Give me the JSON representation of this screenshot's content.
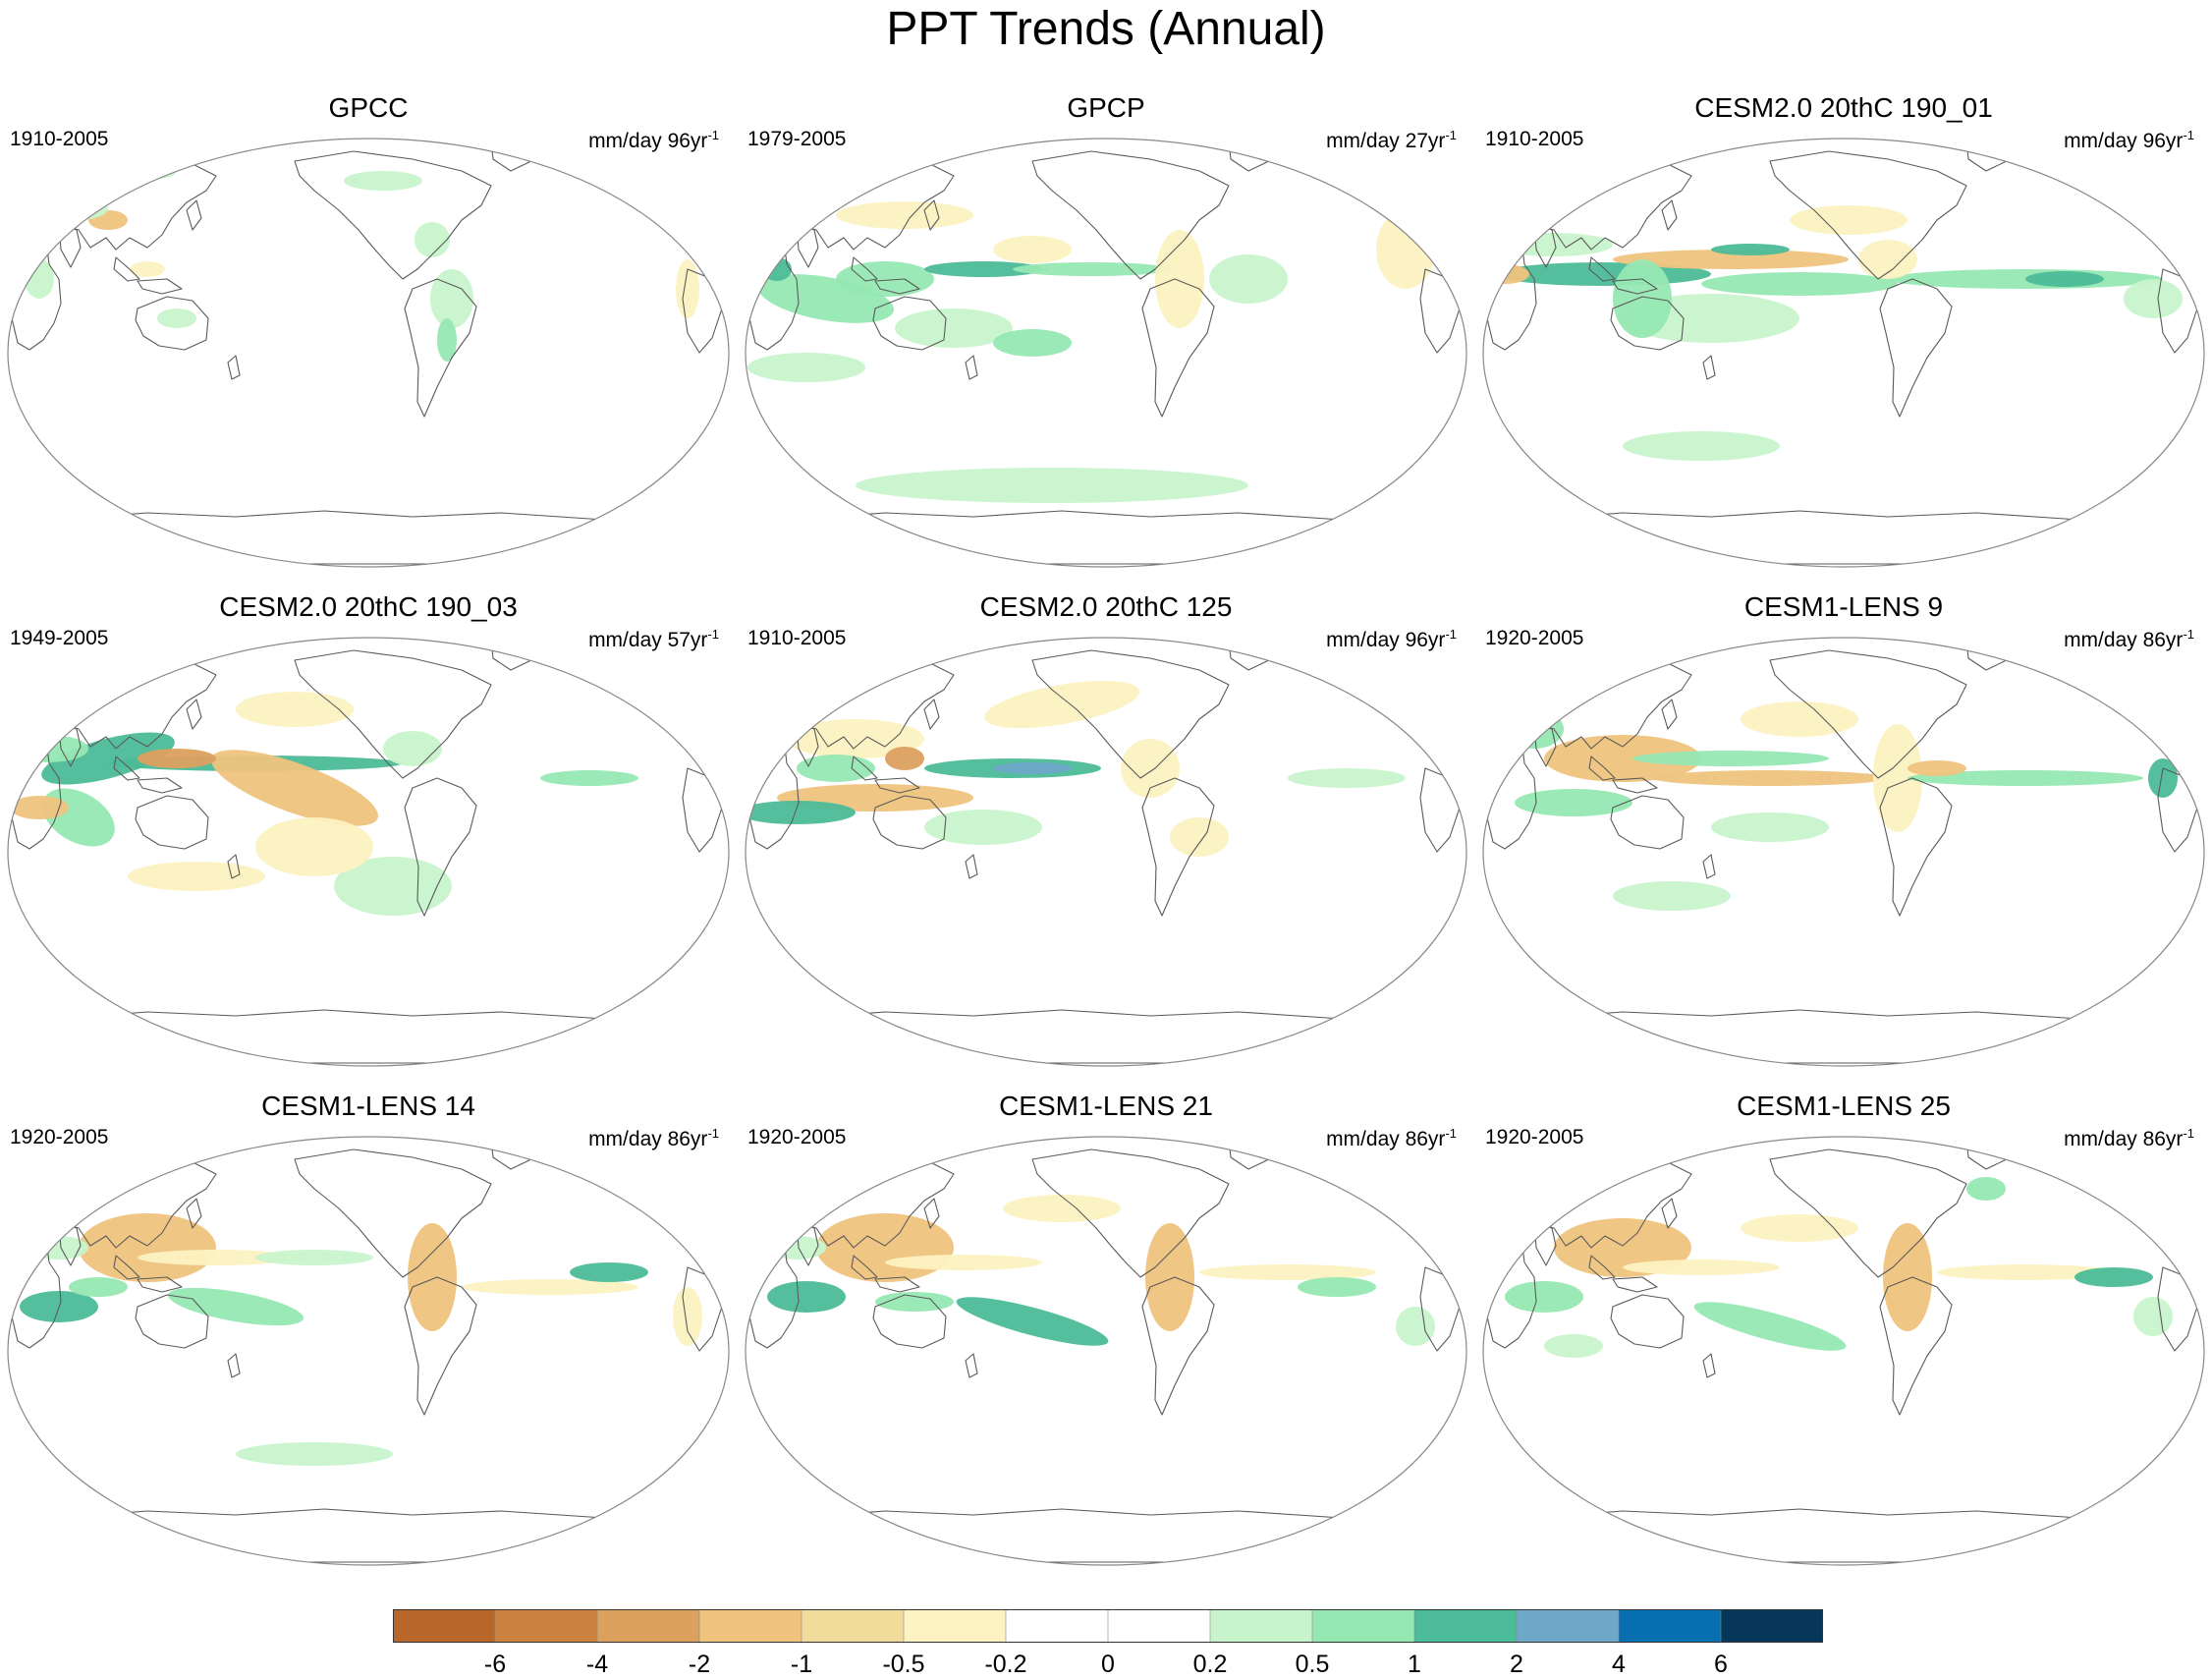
{
  "title": "PPT Trends (Annual)",
  "panels": [
    {
      "name": "GPCC",
      "years": "1910-2005",
      "units": "mm/day 96yr",
      "units_sup": "-1"
    },
    {
      "name": "GPCP",
      "years": "1979-2005",
      "units": "mm/day 27yr",
      "units_sup": "-1"
    },
    {
      "name": "CESM2.0 20thC 190_01",
      "years": "1910-2005",
      "units": "mm/day 96yr",
      "units_sup": "-1"
    },
    {
      "name": "CESM2.0 20thC 190_03",
      "years": "1949-2005",
      "units": "mm/day 57yr",
      "units_sup": "-1"
    },
    {
      "name": "CESM2.0 20thC 125",
      "years": "1910-2005",
      "units": "mm/day 96yr",
      "units_sup": "-1"
    },
    {
      "name": "CESM1-LENS 9",
      "years": "1920-2005",
      "units": "mm/day 86yr",
      "units_sup": "-1"
    },
    {
      "name": "CESM1-LENS 14",
      "years": "1920-2005",
      "units": "mm/day 86yr",
      "units_sup": "-1"
    },
    {
      "name": "CESM1-LENS 21",
      "years": "1920-2005",
      "units": "mm/day 86yr",
      "units_sup": "-1"
    },
    {
      "name": "CESM1-LENS 25",
      "years": "1920-2005",
      "units": "mm/day 86yr",
      "units_sup": "-1"
    }
  ],
  "colorbar": {
    "labels": [
      "-6",
      "-4",
      "-2",
      "-1",
      "-0.5",
      "-0.2",
      "0",
      "0.2",
      "0.5",
      "1",
      "2",
      "4",
      "6"
    ],
    "colors": [
      "#b8672a",
      "#cc823f",
      "#dca05f",
      "#efc37e",
      "#f2dc9c",
      "#fcf2c2",
      "#ffffff",
      "#ffffff",
      "#c8f4cb",
      "#96e8b2",
      "#4cbc98",
      "#6ea8c8",
      "#086fb0",
      "#06375a"
    ]
  },
  "map_colors": {
    "ocean": "#ffffff",
    "coast": "#5a5a5a",
    "border": "#888888",
    "dry_light": "#fcf2c2",
    "dry_medium": "#efc37e",
    "dry_strong": "#dca05f",
    "wet_light": "#c8f4cb",
    "wet_medium": "#96e8b2",
    "wet_strong": "#4cbc98",
    "wet_max": "#6ea8c8"
  }
}
